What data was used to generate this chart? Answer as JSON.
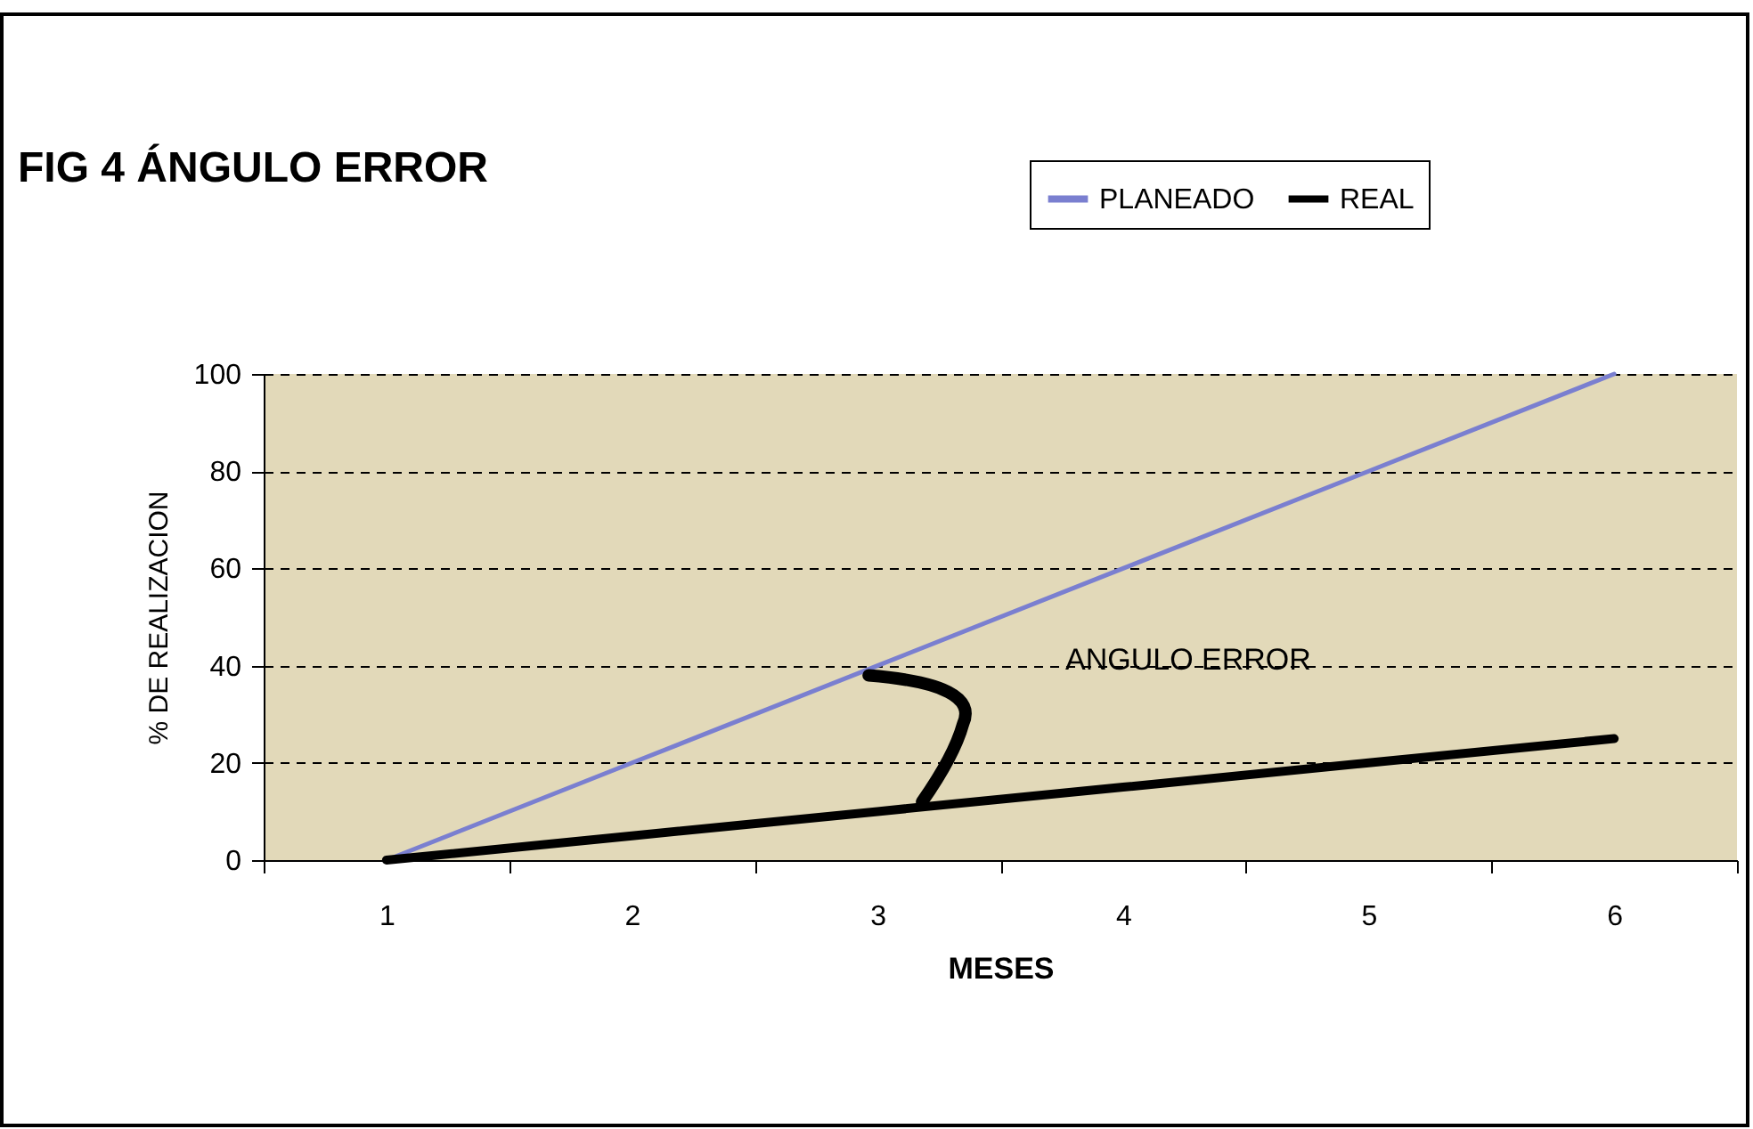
{
  "chart_data": {
    "type": "line",
    "title": "FIG 4   ÁNGULO ERROR",
    "xlabel": "MESES",
    "ylabel": "% DE REALIZACION",
    "categories": [
      "1",
      "2",
      "3",
      "4",
      "5",
      "6"
    ],
    "series": [
      {
        "name": "PLANEADO",
        "color": "#7a7fd0",
        "values": [
          0,
          20,
          40,
          60,
          80,
          100
        ]
      },
      {
        "name": "REAL",
        "color": "#000000",
        "values": [
          0,
          5,
          10,
          15,
          20,
          25
        ]
      }
    ],
    "ylim": [
      0,
      100
    ],
    "yticks": [
      0,
      20,
      40,
      60,
      80,
      100
    ],
    "grid": "y",
    "legend": "top right",
    "marker": "none",
    "line_style": "solid",
    "annotations": [
      "ANGULO ERROR"
    ]
  }
}
